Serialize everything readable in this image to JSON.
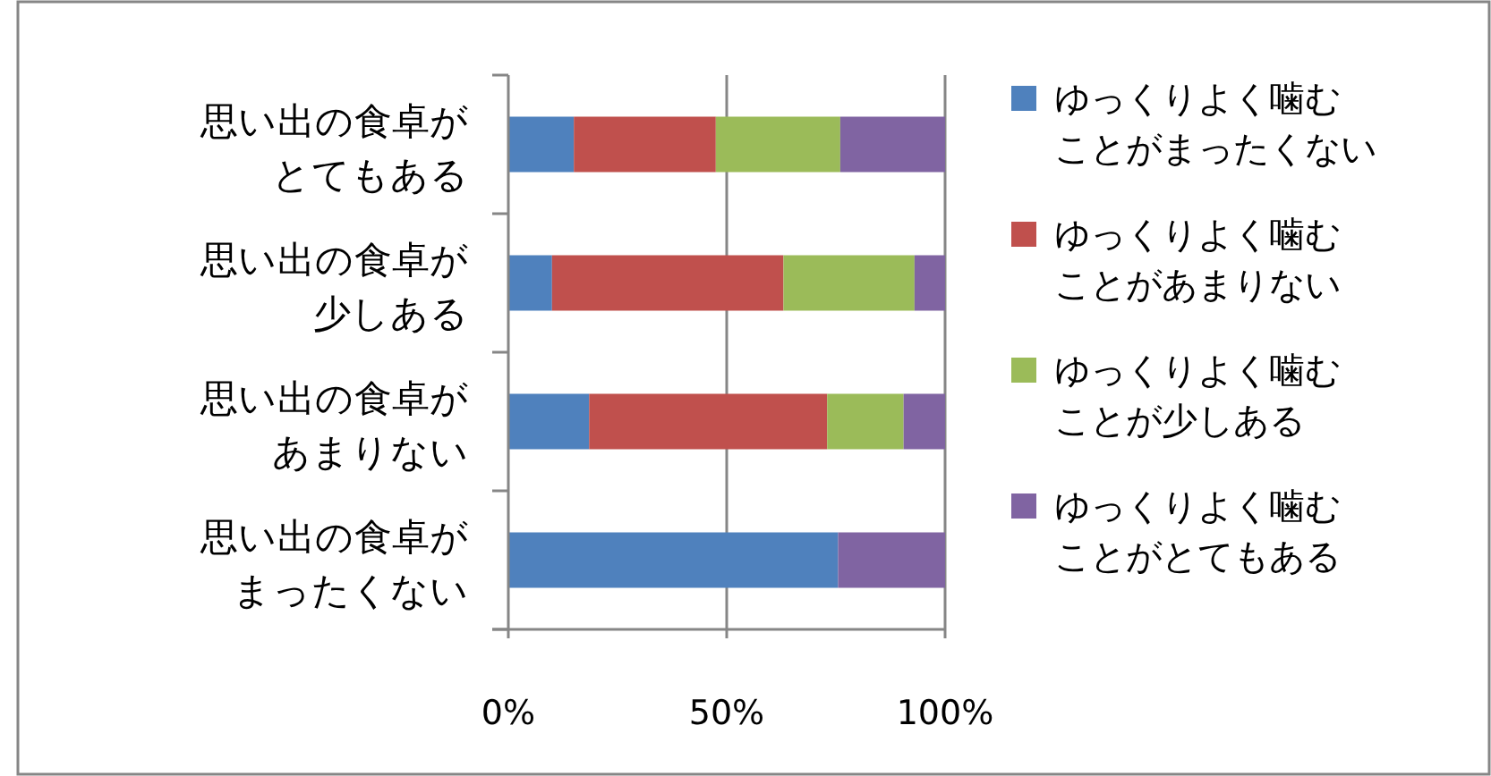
{
  "chart_data": {
    "type": "bar",
    "orientation": "horizontal",
    "stacked": true,
    "categories": [
      "思い出の食卓がとてもある",
      "思い出の食卓が少しある",
      "思い出の食卓があまりない",
      "思い出の食卓がまったくない"
    ],
    "series": [
      {
        "name": "ゆっくりよく噛むことがまったくない",
        "color": "#4f81bd",
        "values": [
          15,
          10,
          18.5,
          75.5
        ]
      },
      {
        "name": "ゆっくりよく噛むことがあまりない",
        "color": "#c0504d",
        "values": [
          32.5,
          53,
          54.5,
          0
        ]
      },
      {
        "name": "ゆっくりよく噛むことが少しある",
        "color": "#9bbb59",
        "values": [
          28.5,
          30,
          17.5,
          0
        ]
      },
      {
        "name": "ゆっくりよく噛むことがとてもある",
        "color": "#8064a2",
        "values": [
          24,
          7,
          9.5,
          24.5
        ]
      }
    ],
    "xlim": [
      0,
      100
    ],
    "xticks": [
      {
        "value": 0,
        "label": "0%"
      },
      {
        "value": 50,
        "label": "50%"
      },
      {
        "value": 100,
        "label": "100%"
      }
    ],
    "grid": "x",
    "legend": "right"
  }
}
